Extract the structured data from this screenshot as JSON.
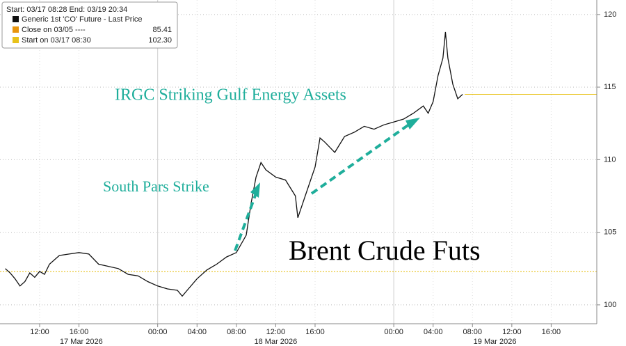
{
  "chart_data": {
    "type": "line",
    "legend_title": "Start: 03/17 08:28 End: 03/19 20:34",
    "annotations": [
      "IRGC Striking Gulf Energy Assets",
      "South Pars Strike",
      "Brent Crude Futs"
    ],
    "x": [
      "2026-03-17 08:30",
      "2026-03-17 09:00",
      "2026-03-17 09:30",
      "2026-03-17 10:00",
      "2026-03-17 10:30",
      "2026-03-17 11:00",
      "2026-03-17 11:30",
      "2026-03-17 12:00",
      "2026-03-17 12:30",
      "2026-03-17 13:00",
      "2026-03-17 13:30",
      "2026-03-17 14:00",
      "2026-03-17 15:00",
      "2026-03-17 16:00",
      "2026-03-17 17:00",
      "2026-03-17 18:00",
      "2026-03-17 20:00",
      "2026-03-17 21:00",
      "2026-03-17 22:00",
      "2026-03-17 23:00",
      "2026-03-18 00:00",
      "2026-03-18 01:00",
      "2026-03-18 02:00",
      "2026-03-18 02:30",
      "2026-03-18 03:00",
      "2026-03-18 04:00",
      "2026-03-18 05:00",
      "2026-03-18 06:00",
      "2026-03-18 07:00",
      "2026-03-18 08:00",
      "2026-03-18 09:00",
      "2026-03-18 09:30",
      "2026-03-18 10:00",
      "2026-03-18 10:30",
      "2026-03-18 11:00",
      "2026-03-18 12:00",
      "2026-03-18 13:00",
      "2026-03-18 14:00",
      "2026-03-18 14:15",
      "2026-03-18 15:00",
      "2026-03-18 16:00",
      "2026-03-18 16:30",
      "2026-03-18 17:00",
      "2026-03-18 18:00",
      "2026-03-18 19:00",
      "2026-03-18 20:00",
      "2026-03-18 21:00",
      "2026-03-18 22:00",
      "2026-03-18 23:00",
      "2026-03-19 00:00",
      "2026-03-19 01:00",
      "2026-03-19 02:00",
      "2026-03-19 03:00",
      "2026-03-19 03:30",
      "2026-03-19 04:00",
      "2026-03-19 04:30",
      "2026-03-19 05:00",
      "2026-03-19 05:15",
      "2026-03-19 05:30",
      "2026-03-19 06:00",
      "2026-03-19 06:30",
      "2026-03-19 07:00"
    ],
    "series": [
      {
        "name": "Generic 1st 'CO' Future - Last Price",
        "color": "#111111",
        "values": [
          102.5,
          102.2,
          101.8,
          101.3,
          101.6,
          102.2,
          101.9,
          102.3,
          102.1,
          102.8,
          103.1,
          103.4,
          103.5,
          103.6,
          103.5,
          102.8,
          102.5,
          102.1,
          102.0,
          101.6,
          101.3,
          101.1,
          101.0,
          100.6,
          101.0,
          101.8,
          102.4,
          102.8,
          103.3,
          103.6,
          104.8,
          107.0,
          108.8,
          109.8,
          109.3,
          108.8,
          108.6,
          107.5,
          106.0,
          107.5,
          109.5,
          111.5,
          111.2,
          110.5,
          111.6,
          111.9,
          112.3,
          112.1,
          112.4,
          112.6,
          112.8,
          113.2,
          113.7,
          113.2,
          114.0,
          115.8,
          117.0,
          118.8,
          117.0,
          115.2,
          114.2,
          114.5
        ]
      }
    ],
    "reference_lines": [
      {
        "name": "Close on 03/05 ----",
        "value": 85.41,
        "color": "#e8950c"
      },
      {
        "name": "Start on 03/17 08:30",
        "value": 102.3,
        "value_label": "102.30",
        "color": "#e8c21a"
      }
    ],
    "xlim": [
      "2026-03-17 08:28",
      "2026-03-19 20:34"
    ],
    "xticks": [
      {
        "value": "2026-03-17 12:00",
        "label": "12:00"
      },
      {
        "value": "2026-03-17 16:00",
        "label": "16:00"
      },
      {
        "value": "2026-03-18 00:00",
        "label": "00:00"
      },
      {
        "value": "2026-03-18 04:00",
        "label": "04:00"
      },
      {
        "value": "2026-03-18 08:00",
        "label": "08:00"
      },
      {
        "value": "2026-03-18 12:00",
        "label": "12:00"
      },
      {
        "value": "2026-03-18 16:00",
        "label": "16:00"
      },
      {
        "value": "2026-03-19 00:00",
        "label": "00:00"
      },
      {
        "value": "2026-03-19 04:00",
        "label": "04:00"
      },
      {
        "value": "2026-03-19 08:00",
        "label": "08:00"
      },
      {
        "value": "2026-03-19 12:00",
        "label": "12:00"
      },
      {
        "value": "2026-03-19 16:00",
        "label": "16:00"
      }
    ],
    "x_dates": [
      {
        "value": "2026-03-17",
        "label": "17 Mar 2026"
      },
      {
        "value": "2026-03-18",
        "label": "18 Mar 2026"
      },
      {
        "value": "2026-03-19",
        "label": "19 Mar 2026"
      }
    ],
    "ylim": [
      98.7,
      121
    ],
    "yticks": [
      100,
      105,
      110,
      115,
      120
    ],
    "grid": true
  }
}
